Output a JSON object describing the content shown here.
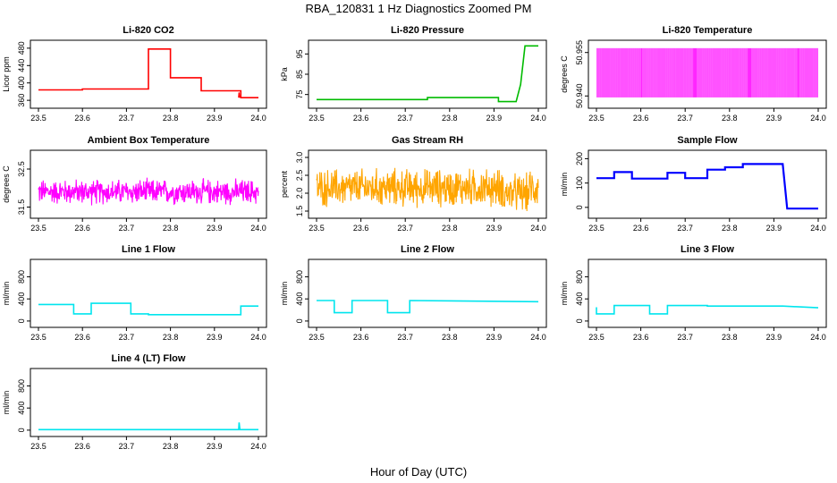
{
  "title": "RBA_120831  1 Hz Diagnostics Zoomed PM",
  "xlabel": "Hour of Day (UTC)",
  "chart_data": [
    {
      "type": "line",
      "title": "Li-820 CO2",
      "ylabel": "Licor ppm",
      "color": "#ff0000",
      "xlim": [
        23.5,
        24.0
      ],
      "ylim": [
        350,
        490
      ],
      "xticks": [
        "23.5",
        "23.6",
        "23.7",
        "23.8",
        "23.9",
        "24.0"
      ],
      "yticks": [
        "360",
        "400",
        "440",
        "480"
      ],
      "series": [
        {
          "name": "CO2",
          "x": [
            23.5,
            23.6,
            23.6,
            23.75,
            23.75,
            23.78,
            23.78,
            23.8,
            23.8,
            23.82,
            23.82,
            23.87,
            23.87,
            23.96,
            23.96,
            24.0
          ],
          "y": [
            384,
            384,
            386,
            386,
            478,
            478,
            478,
            478,
            412,
            412,
            412,
            412,
            382,
            382,
            366,
            366
          ]
        }
      ]
    },
    {
      "type": "line",
      "title": "Li-820 Pressure",
      "ylabel": "kPa",
      "color": "#00bb00",
      "xlim": [
        23.5,
        24.0
      ],
      "ylim": [
        70,
        100
      ],
      "xticks": [
        "23.5",
        "23.6",
        "23.7",
        "23.8",
        "23.9",
        "24.0"
      ],
      "yticks": [
        "75",
        "85",
        "95"
      ],
      "series": [
        {
          "name": "Pressure",
          "x": [
            23.5,
            23.7,
            23.75,
            23.75,
            23.9,
            23.91,
            23.91,
            23.95,
            23.96,
            23.97,
            24.0
          ],
          "y": [
            72.5,
            72.5,
            72.5,
            73.5,
            73.5,
            73.5,
            71.5,
            71.5,
            80,
            99,
            99
          ]
        }
      ]
    },
    {
      "type": "line",
      "title": "Li-820 Temperature",
      "ylabel": "degrees C",
      "color": "#ff00ff",
      "xlim": [
        23.5,
        24.0
      ],
      "ylim": [
        50.937,
        50.958
      ],
      "xticks": [
        "23.5",
        "23.6",
        "23.7",
        "23.8",
        "23.9",
        "24.0"
      ],
      "yticks": [
        "50.940",
        "50.955"
      ],
      "series": [
        {
          "name": "Temperature",
          "low": 50.9395,
          "high": 50.9565,
          "gap_x": [
            23.722,
            23.846
          ]
        }
      ]
    },
    {
      "type": "line",
      "title": "Ambient Box Temperature",
      "ylabel": "degrees C",
      "color": "#ff00ff",
      "xlim": [
        23.5,
        24.0
      ],
      "ylim": [
        31.3,
        32.9
      ],
      "xticks": [
        "23.5",
        "23.6",
        "23.7",
        "23.8",
        "23.9",
        "24.0"
      ],
      "yticks": [
        "31.5",
        "32.5"
      ],
      "series": [
        {
          "name": "Ambient",
          "mean": 31.9,
          "spread": 0.28
        }
      ]
    },
    {
      "type": "line",
      "title": "Gas Stream RH",
      "ylabel": "percent",
      "color": "#ffa500",
      "xlim": [
        23.5,
        24.0
      ],
      "ylim": [
        1.4,
        3.1
      ],
      "xticks": [
        "23.5",
        "23.6",
        "23.7",
        "23.8",
        "23.9",
        "24.0"
      ],
      "yticks": [
        "1.5",
        "2.0",
        "2.5",
        "3.0"
      ],
      "series": [
        {
          "name": "RH",
          "mean": 2.15,
          "spread": 0.45
        }
      ]
    },
    {
      "type": "line",
      "title": "Sample Flow",
      "ylabel": "ml/min",
      "color": "#0000ff",
      "xlim": [
        23.5,
        24.0
      ],
      "ylim": [
        -30,
        220
      ],
      "xticks": [
        "23.5",
        "23.6",
        "23.7",
        "23.8",
        "23.9",
        "24.0"
      ],
      "yticks": [
        "0",
        "100",
        "200"
      ],
      "series": [
        {
          "name": "Sample",
          "x": [
            23.5,
            23.54,
            23.54,
            23.58,
            23.58,
            23.66,
            23.66,
            23.7,
            23.7,
            23.71,
            23.71,
            23.75,
            23.75,
            23.79,
            23.79,
            23.83,
            23.83,
            23.92,
            23.93,
            24.0
          ],
          "y": [
            120,
            120,
            145,
            145,
            118,
            118,
            142,
            142,
            120,
            120,
            120,
            120,
            155,
            155,
            165,
            165,
            178,
            178,
            -5,
            -5
          ]
        }
      ]
    },
    {
      "type": "line",
      "title": "Line 1 Flow",
      "ylabel": "ml/min",
      "color": "#00e5ee",
      "xlim": [
        23.5,
        24.0
      ],
      "ylim": [
        -50,
        1050
      ],
      "xticks": [
        "23.5",
        "23.6",
        "23.7",
        "23.8",
        "23.9",
        "24.0"
      ],
      "yticks": [
        "0",
        "400",
        "800"
      ],
      "series": [
        {
          "name": "Line 1",
          "x": [
            23.5,
            23.58,
            23.58,
            23.62,
            23.62,
            23.71,
            23.71,
            23.75,
            23.75,
            23.96,
            23.96,
            24.0
          ],
          "y": [
            300,
            300,
            130,
            130,
            320,
            320,
            130,
            130,
            115,
            115,
            270,
            270
          ]
        }
      ]
    },
    {
      "type": "line",
      "title": "Line 2 Flow",
      "ylabel": "ml/min",
      "color": "#00e5ee",
      "xlim": [
        23.5,
        24.0
      ],
      "ylim": [
        -50,
        1050
      ],
      "xticks": [
        "23.5",
        "23.6",
        "23.7",
        "23.8",
        "23.9",
        "24.0"
      ],
      "yticks": [
        "0",
        "400",
        "800"
      ],
      "series": [
        {
          "name": "Line 2",
          "x": [
            23.5,
            23.54,
            23.54,
            23.58,
            23.58,
            23.66,
            23.66,
            23.71,
            23.71,
            24.0
          ],
          "y": [
            370,
            370,
            150,
            150,
            370,
            370,
            150,
            150,
            370,
            350
          ]
        }
      ]
    },
    {
      "type": "line",
      "title": "Line 3 Flow",
      "ylabel": "ml/min",
      "color": "#00e5ee",
      "xlim": [
        23.5,
        24.0
      ],
      "ylim": [
        -50,
        1050
      ],
      "xticks": [
        "23.5",
        "23.6",
        "23.7",
        "23.8",
        "23.9",
        "24.0"
      ],
      "yticks": [
        "0",
        "400",
        "800"
      ],
      "series": [
        {
          "name": "Line 3",
          "x": [
            23.5,
            23.5,
            23.54,
            23.54,
            23.62,
            23.62,
            23.66,
            23.66,
            23.75,
            23.75,
            23.92,
            24.0
          ],
          "y": [
            250,
            130,
            130,
            280,
            280,
            130,
            130,
            280,
            280,
            270,
            270,
            240
          ]
        }
      ]
    },
    {
      "type": "line",
      "title": "Line 4 (LT) Flow",
      "ylabel": "ml/min",
      "color": "#00e5ee",
      "xlim": [
        23.5,
        24.0
      ],
      "ylim": [
        -50,
        1050
      ],
      "xticks": [
        "23.5",
        "23.6",
        "23.7",
        "23.8",
        "23.9",
        "24.0"
      ],
      "yticks": [
        "0",
        "400",
        "800"
      ],
      "series": [
        {
          "name": "Line 4",
          "x": [
            23.5,
            23.955,
            23.956,
            23.958,
            23.96,
            24.0
          ],
          "y": [
            10,
            10,
            140,
            10,
            10,
            10
          ]
        }
      ]
    }
  ]
}
